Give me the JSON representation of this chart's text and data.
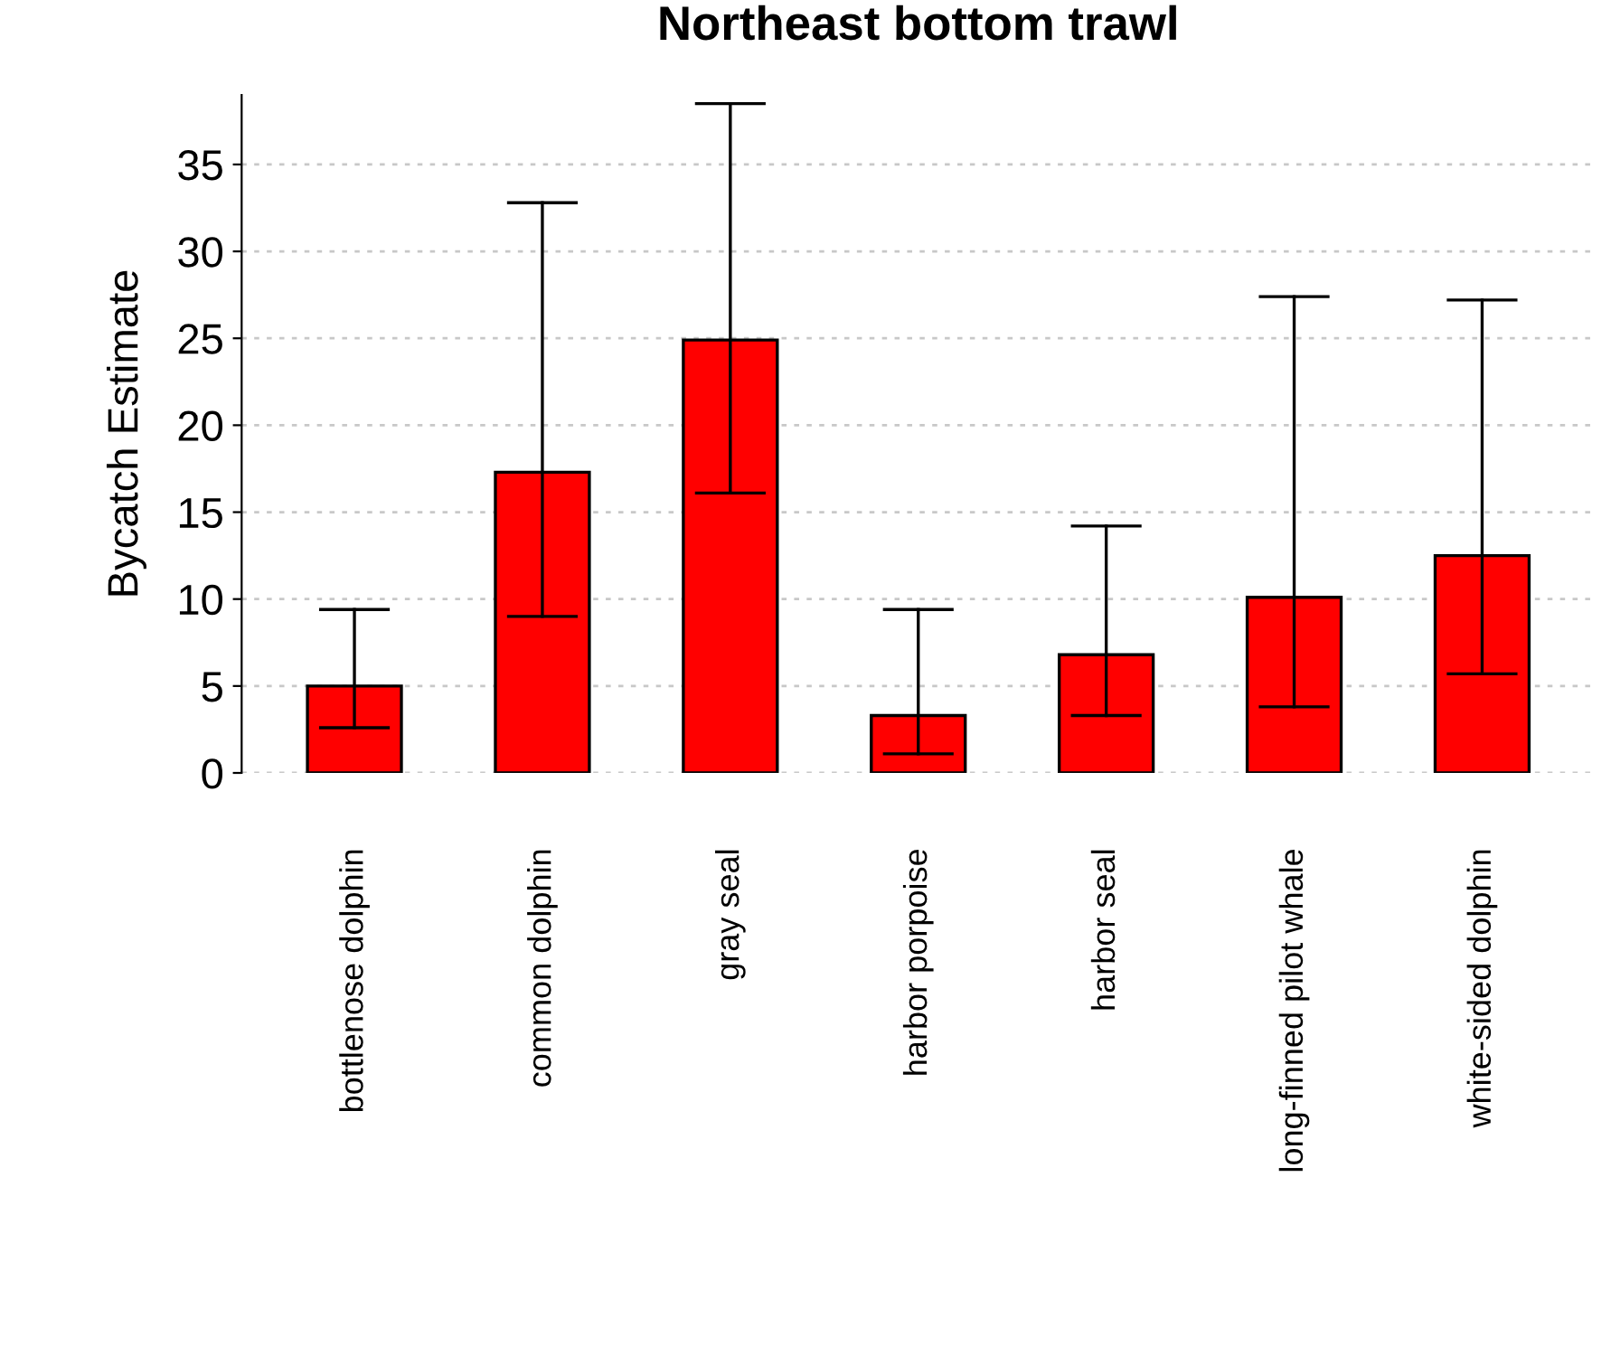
{
  "chart_data": {
    "type": "bar",
    "title": "Northeast bottom trawl",
    "ylabel": "Bycatch Estimate",
    "categories": [
      "bottlenose dolphin",
      "common dolphin",
      "gray seal",
      "harbor porpoise",
      "harbor seal",
      "long-finned pilot whale",
      "white-sided dolphin"
    ],
    "values": [
      5.0,
      17.3,
      24.9,
      3.3,
      6.8,
      10.1,
      12.5
    ],
    "errors": [
      [
        2.6,
        9.4
      ],
      [
        9.0,
        32.8
      ],
      [
        16.1,
        38.5
      ],
      [
        1.1,
        9.4
      ],
      [
        3.3,
        14.2
      ],
      [
        3.8,
        27.4
      ],
      [
        5.7,
        27.2
      ]
    ],
    "color": "#ff0000",
    "ylim": [
      0,
      39
    ],
    "yticks": [
      0,
      5,
      10,
      15,
      20,
      25,
      30,
      35
    ],
    "grid": "y"
  }
}
